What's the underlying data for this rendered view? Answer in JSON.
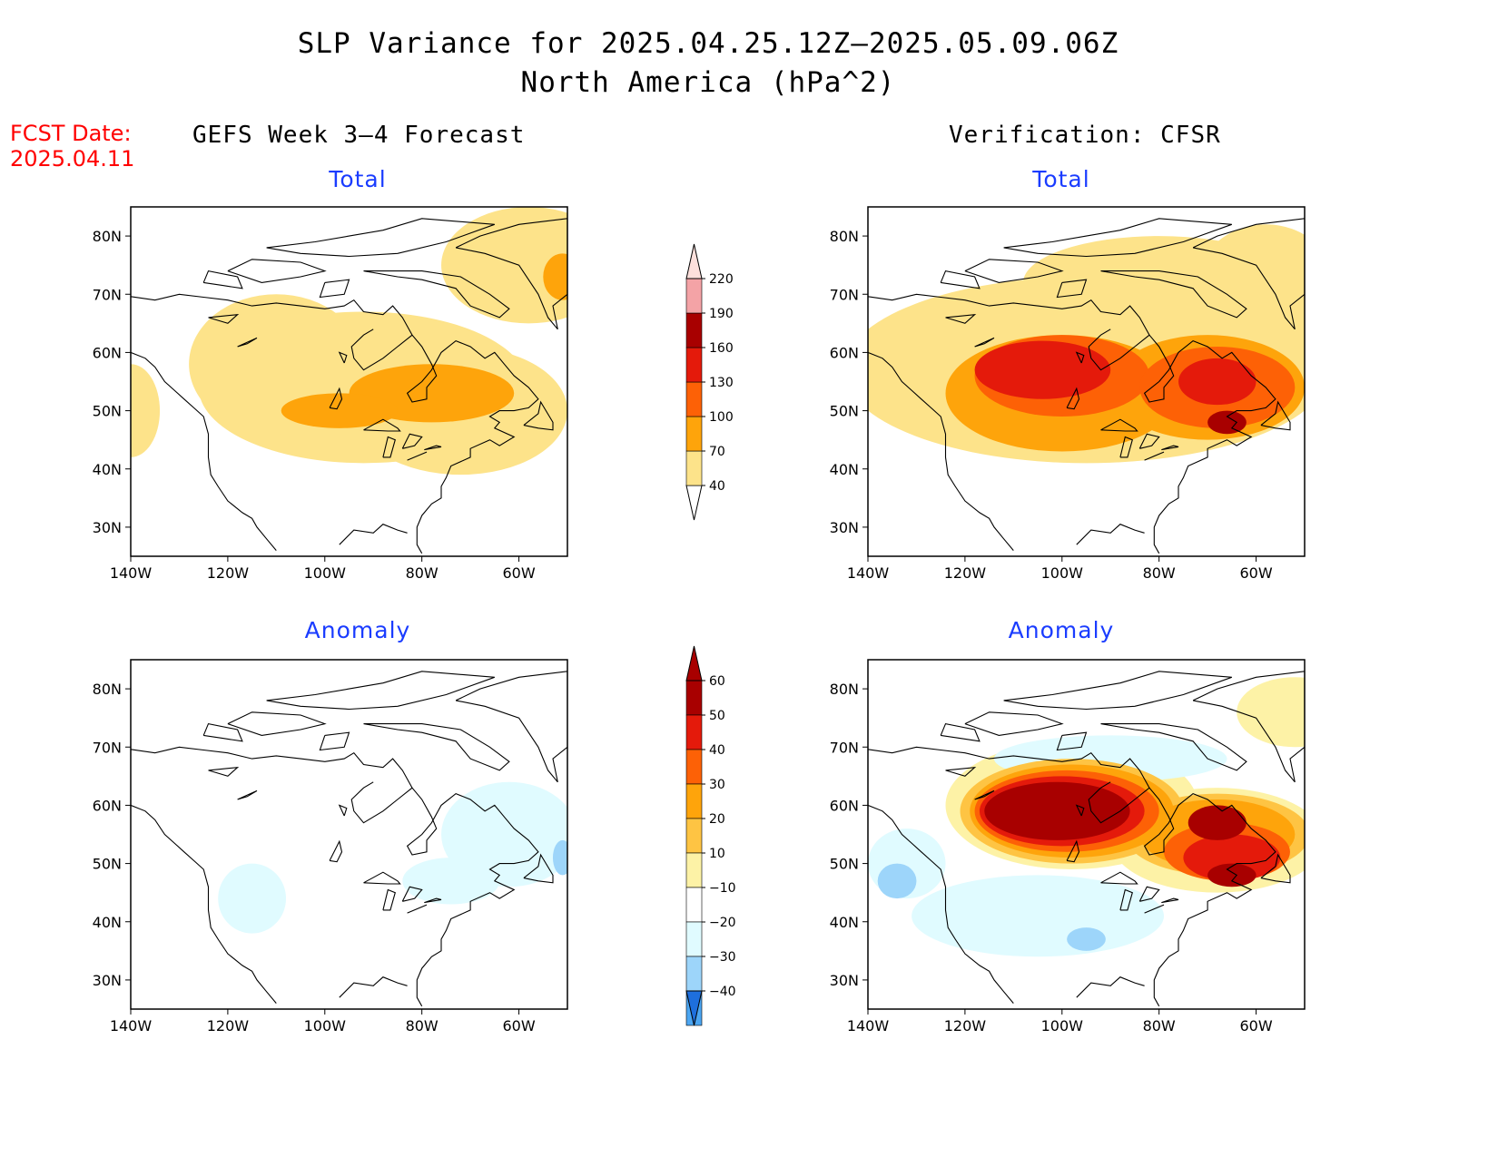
{
  "title_line1": "SLP Variance for 2025.04.25.12Z–2025.05.09.06Z",
  "title_line2": "North America (hPa^2)",
  "fcst_label": "FCST Date:",
  "fcst_date": "2025.04.11",
  "left_heading": "GEFS Week 3–4 Forecast",
  "right_heading": "Verification: CFSR",
  "colors": {
    "total": [
      "#fde38a",
      "#fea40b",
      "#fd6106",
      "#e41a0b",
      "#a80000",
      "#f4a3a6",
      "#fde0dc"
    ],
    "anom_pos": [
      "#fdf2a6",
      "#fec443",
      "#fea40b",
      "#fd6106",
      "#e41a0b",
      "#a80000"
    ],
    "anom_neg": [
      "#e0fbff",
      "#9dd5fa",
      "#4ca6f2",
      "#1e6fdd"
    ],
    "coast": "#000000"
  },
  "panels": [
    {
      "key": "fc_total",
      "subtitle": "Total",
      "type": "total",
      "blobs": [
        {
          "lon": -92,
          "lat": 54,
          "rx": 34,
          "ry": 13,
          "level": 0
        },
        {
          "lon": -72,
          "lat": 50,
          "rx": 22,
          "ry": 11,
          "level": 0
        },
        {
          "lon": -110,
          "lat": 58,
          "rx": 18,
          "ry": 12,
          "level": 0
        },
        {
          "lon": -58,
          "lat": 75,
          "rx": 18,
          "ry": 10,
          "level": 0
        },
        {
          "lon": -140,
          "lat": 50,
          "rx": 6,
          "ry": 8,
          "level": 0
        },
        {
          "lon": -78,
          "lat": 53,
          "rx": 17,
          "ry": 5,
          "level": 1
        },
        {
          "lon": -97,
          "lat": 50,
          "rx": 12,
          "ry": 3,
          "level": 1
        },
        {
          "lon": -51,
          "lat": 73,
          "rx": 4,
          "ry": 4,
          "level": 1
        }
      ]
    },
    {
      "key": "obs_total",
      "subtitle": "Total",
      "type": "total",
      "blobs": [
        {
          "lon": -95,
          "lat": 57,
          "rx": 50,
          "ry": 16,
          "level": 0
        },
        {
          "lon": -80,
          "lat": 72,
          "rx": 28,
          "ry": 8,
          "level": 0
        },
        {
          "lon": -58,
          "lat": 72,
          "rx": 14,
          "ry": 10,
          "level": 0
        },
        {
          "lon": -100,
          "lat": 53,
          "rx": 24,
          "ry": 10,
          "level": 1
        },
        {
          "lon": -70,
          "lat": 54,
          "rx": 20,
          "ry": 9,
          "level": 1
        },
        {
          "lon": -100,
          "lat": 56,
          "rx": 18,
          "ry": 7,
          "level": 2
        },
        {
          "lon": -68,
          "lat": 54,
          "rx": 16,
          "ry": 7,
          "level": 2
        },
        {
          "lon": -104,
          "lat": 57,
          "rx": 14,
          "ry": 5,
          "level": 3
        },
        {
          "lon": -68,
          "lat": 55,
          "rx": 8,
          "ry": 4,
          "level": 3
        },
        {
          "lon": -66,
          "lat": 48,
          "rx": 4,
          "ry": 2,
          "level": 4
        }
      ]
    },
    {
      "key": "fc_anom",
      "subtitle": "Anomaly",
      "type": "anom",
      "blobs": [
        {
          "lon": -62,
          "lat": 55,
          "rx": 14,
          "ry": 9,
          "level": -1
        },
        {
          "lon": -74,
          "lat": 47,
          "rx": 10,
          "ry": 4,
          "level": -1
        },
        {
          "lon": -115,
          "lat": 44,
          "rx": 7,
          "ry": 6,
          "level": -1
        },
        {
          "lon": -51,
          "lat": 51,
          "rx": 2,
          "ry": 3,
          "level": -2
        }
      ]
    },
    {
      "key": "obs_anom",
      "subtitle": "Anomaly",
      "type": "anom",
      "blobs": [
        {
          "lon": -105,
          "lat": 41,
          "rx": 26,
          "ry": 7,
          "level": -1
        },
        {
          "lon": -132,
          "lat": 50,
          "rx": 8,
          "ry": 6,
          "level": -1
        },
        {
          "lon": -90,
          "lat": 68,
          "rx": 24,
          "ry": 4,
          "level": -1
        },
        {
          "lon": -95,
          "lat": 37,
          "rx": 4,
          "ry": 2,
          "level": -2
        },
        {
          "lon": -134,
          "lat": 47,
          "rx": 4,
          "ry": 3,
          "level": -2
        },
        {
          "lon": -98,
          "lat": 60,
          "rx": 26,
          "ry": 11,
          "level": 0
        },
        {
          "lon": -68,
          "lat": 54,
          "rx": 22,
          "ry": 9,
          "level": 0
        },
        {
          "lon": -52,
          "lat": 76,
          "rx": 12,
          "ry": 6,
          "level": 0
        },
        {
          "lon": -98,
          "lat": 59,
          "rx": 23,
          "ry": 9,
          "level": 1
        },
        {
          "lon": -68,
          "lat": 55,
          "rx": 19,
          "ry": 7,
          "level": 1
        },
        {
          "lon": -98,
          "lat": 59,
          "rx": 21,
          "ry": 8,
          "level": 2
        },
        {
          "lon": -68,
          "lat": 55,
          "rx": 16,
          "ry": 6,
          "level": 2
        },
        {
          "lon": -99,
          "lat": 59,
          "rx": 19,
          "ry": 7,
          "level": 3
        },
        {
          "lon": -66,
          "lat": 52,
          "rx": 13,
          "ry": 5,
          "level": 3
        },
        {
          "lon": -100,
          "lat": 59,
          "rx": 17,
          "ry": 6,
          "level": 4
        },
        {
          "lon": -65,
          "lat": 51,
          "rx": 10,
          "ry": 4,
          "level": 4
        },
        {
          "lon": -101,
          "lat": 59,
          "rx": 15,
          "ry": 5,
          "level": 5
        },
        {
          "lon": -68,
          "lat": 57,
          "rx": 6,
          "ry": 3,
          "level": 5
        },
        {
          "lon": -65,
          "lat": 48,
          "rx": 5,
          "ry": 2,
          "level": 5
        }
      ]
    }
  ],
  "axes": {
    "lon_labels": [
      "140W",
      "120W",
      "100W",
      "80W",
      "60W"
    ],
    "lon_values": [
      -140,
      -120,
      -100,
      -80,
      -60
    ],
    "lat_labels": [
      "30N",
      "40N",
      "50N",
      "60N",
      "70N",
      "80N"
    ],
    "lat_values": [
      30,
      40,
      50,
      60,
      70,
      80
    ],
    "lon_range": [
      -140,
      -50
    ],
    "lat_range": [
      25,
      85
    ]
  },
  "colorbar_total": {
    "labels": [
      "40",
      "70",
      "100",
      "130",
      "160",
      "190",
      "220"
    ]
  },
  "colorbar_anom": {
    "labels": [
      "60",
      "50",
      "40",
      "30",
      "20",
      "10",
      "−10",
      "−20",
      "−30",
      "−40"
    ]
  }
}
